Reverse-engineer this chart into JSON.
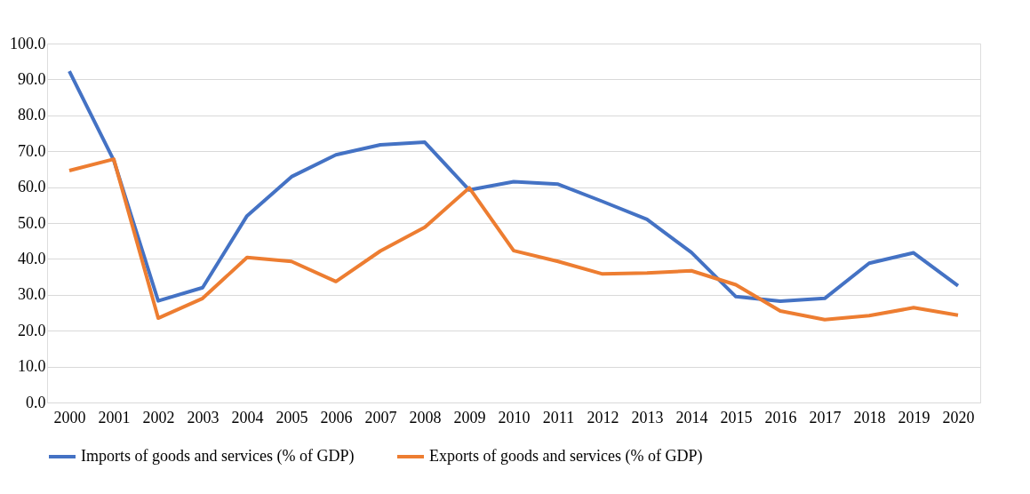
{
  "chart_data": {
    "type": "line",
    "categories": [
      "2000",
      "2001",
      "2002",
      "2003",
      "2004",
      "2005",
      "2006",
      "2007",
      "2008",
      "2009",
      "2010",
      "2011",
      "2012",
      "2013",
      "2014",
      "2015",
      "2016",
      "2017",
      "2018",
      "2019",
      "2020"
    ],
    "series": [
      {
        "name": "Imports of goods and services (% of GDP)",
        "color": "#4472c4",
        "values": [
          92.3,
          67.5,
          28.3,
          32.0,
          52.0,
          62.9,
          69.0,
          71.8,
          72.5,
          59.2,
          61.5,
          60.8,
          56.0,
          51.0,
          41.8,
          29.5,
          28.2,
          29.0,
          38.8,
          41.7,
          32.5
        ]
      },
      {
        "name": "Exports of goods and services (% of GDP)",
        "color": "#ed7d31",
        "values": [
          64.6,
          67.8,
          23.5,
          29.0,
          40.4,
          39.3,
          33.7,
          42.2,
          48.8,
          59.8,
          42.3,
          39.3,
          35.8,
          36.1,
          36.7,
          32.8,
          25.5,
          23.1,
          24.2,
          26.4,
          24.3
        ]
      }
    ],
    "ylim": [
      0,
      100
    ],
    "yticks": [
      {
        "value": 0,
        "label": "0.0"
      },
      {
        "value": 10,
        "label": "10.0"
      },
      {
        "value": 20,
        "label": "20.0"
      },
      {
        "value": 30,
        "label": "30.0"
      },
      {
        "value": 40,
        "label": "40.0"
      },
      {
        "value": 50,
        "label": "50.0"
      },
      {
        "value": 60,
        "label": "60.0"
      },
      {
        "value": 70,
        "label": "70.0"
      },
      {
        "value": 80,
        "label": "80.0"
      },
      {
        "value": 90,
        "label": "90.0"
      },
      {
        "value": 100,
        "label": "100.0"
      }
    ],
    "grid": "y",
    "legend": "bottom",
    "marker": "none",
    "line_style": "solid"
  }
}
